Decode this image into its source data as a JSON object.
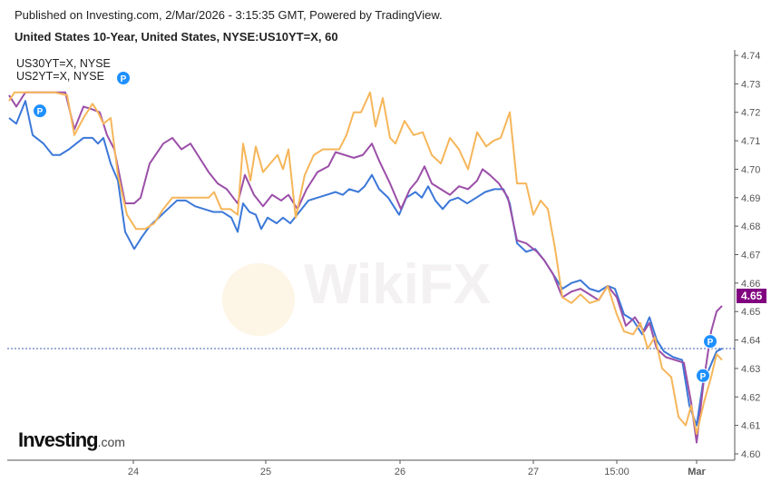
{
  "header": {
    "published": "Published on Investing.com, 2/Mar/2026 - 3:15:35 GMT, Powered by TradingView.",
    "title": "United States 10-Year, United States, NYSE:US10YT=X, 60"
  },
  "legend": [
    "US30YT=X, NYSE",
    "US2YT=X, NYSE"
  ],
  "logo": {
    "main": "Investing",
    "suffix": ".com"
  },
  "watermark": "WikiFX",
  "marker_label": "P",
  "chart_data": {
    "type": "line",
    "title": "United States 10-Year, United States, NYSE:US10YT=X, 60",
    "x_unit": "10-minute intervals (trading time)",
    "xlim": [
      8,
      810
    ],
    "ylim": [
      4.5975,
      4.7435
    ],
    "y_ticks": [
      4.6,
      4.61,
      4.62,
      4.63,
      4.64,
      4.65,
      4.66,
      4.67,
      4.68,
      4.69,
      4.7,
      4.71,
      4.72,
      4.73,
      4.74
    ],
    "x_ticks": [
      {
        "x": 147,
        "label": "24"
      },
      {
        "x": 293,
        "label": "25"
      },
      {
        "x": 441,
        "label": "26"
      },
      {
        "x": 588,
        "label": "27"
      },
      {
        "x": 680,
        "label": "15:00"
      },
      {
        "x": 768,
        "label": "Mar"
      }
    ],
    "last_price": {
      "value": 4.65,
      "label": "4.65",
      "color": "#800080"
    },
    "price_line": 4.637,
    "series": [
      {
        "name": "US10YT=X",
        "color": "#3c78d8",
        "points": [
          [
            10,
            4.718
          ],
          [
            18,
            4.716
          ],
          [
            28,
            4.724
          ],
          [
            36,
            4.712
          ],
          [
            48,
            4.709
          ],
          [
            58,
            4.705
          ],
          [
            66,
            4.705
          ],
          [
            76,
            4.707
          ],
          [
            84,
            4.709
          ],
          [
            92,
            4.711
          ],
          [
            102,
            4.711
          ],
          [
            108,
            4.709
          ],
          [
            114,
            4.711
          ],
          [
            122,
            4.702
          ],
          [
            130,
            4.696
          ],
          [
            138,
            4.678
          ],
          [
            148,
            4.672
          ],
          [
            156,
            4.676
          ],
          [
            165,
            4.68
          ],
          [
            175,
            4.683
          ],
          [
            185,
            4.686
          ],
          [
            195,
            4.689
          ],
          [
            205,
            4.689
          ],
          [
            215,
            4.687
          ],
          [
            225,
            4.686
          ],
          [
            235,
            4.685
          ],
          [
            245,
            4.685
          ],
          [
            255,
            4.683
          ],
          [
            262,
            4.678
          ],
          [
            268,
            4.688
          ],
          [
            275,
            4.685
          ],
          [
            282,
            4.684
          ],
          [
            288,
            4.679
          ],
          [
            295,
            4.683
          ],
          [
            305,
            4.681
          ],
          [
            312,
            4.683
          ],
          [
            320,
            4.681
          ],
          [
            330,
            4.685
          ],
          [
            340,
            4.689
          ],
          [
            350,
            4.69
          ],
          [
            360,
            4.691
          ],
          [
            370,
            4.692
          ],
          [
            378,
            4.691
          ],
          [
            385,
            4.693
          ],
          [
            395,
            4.692
          ],
          [
            402,
            4.694
          ],
          [
            410,
            4.698
          ],
          [
            418,
            4.693
          ],
          [
            428,
            4.69
          ],
          [
            440,
            4.684
          ],
          [
            448,
            4.69
          ],
          [
            458,
            4.692
          ],
          [
            465,
            4.69
          ],
          [
            472,
            4.694
          ],
          [
            480,
            4.689
          ],
          [
            488,
            4.686
          ],
          [
            496,
            4.689
          ],
          [
            505,
            4.69
          ],
          [
            515,
            4.688
          ],
          [
            525,
            4.69
          ],
          [
            535,
            4.692
          ],
          [
            545,
            4.693
          ],
          [
            555,
            4.693
          ],
          [
            562,
            4.688
          ],
          [
            570,
            4.674
          ],
          [
            580,
            4.671
          ],
          [
            590,
            4.672
          ],
          [
            600,
            4.668
          ],
          [
            610,
            4.663
          ],
          [
            620,
            4.658
          ],
          [
            630,
            4.66
          ],
          [
            640,
            4.661
          ],
          [
            650,
            4.658
          ],
          [
            660,
            4.657
          ],
          [
            670,
            4.659
          ],
          [
            678,
            4.658
          ],
          [
            688,
            4.649
          ],
          [
            698,
            4.647
          ],
          [
            708,
            4.642
          ],
          [
            716,
            4.648
          ],
          [
            724,
            4.64
          ],
          [
            732,
            4.636
          ],
          [
            742,
            4.634
          ],
          [
            752,
            4.633
          ],
          [
            760,
            4.617
          ],
          [
            768,
            4.61
          ],
          [
            775,
            4.625
          ],
          [
            782,
            4.63
          ],
          [
            790,
            4.636
          ],
          [
            796,
            4.637
          ]
        ]
      },
      {
        "name": "US30YT=X",
        "color": "#9b4fa8",
        "points": [
          [
            10,
            4.726
          ],
          [
            18,
            4.722
          ],
          [
            28,
            4.727
          ],
          [
            40,
            4.727
          ],
          [
            60,
            4.727
          ],
          [
            72,
            4.727
          ],
          [
            82,
            4.714
          ],
          [
            92,
            4.722
          ],
          [
            102,
            4.721
          ],
          [
            110,
            4.72
          ],
          [
            118,
            4.712
          ],
          [
            126,
            4.707
          ],
          [
            138,
            4.688
          ],
          [
            148,
            4.688
          ],
          [
            155,
            4.69
          ],
          [
            165,
            4.702
          ],
          [
            180,
            4.709
          ],
          [
            190,
            4.711
          ],
          [
            200,
            4.707
          ],
          [
            210,
            4.709
          ],
          [
            218,
            4.705
          ],
          [
            230,
            4.699
          ],
          [
            240,
            4.695
          ],
          [
            250,
            4.693
          ],
          [
            262,
            4.688
          ],
          [
            270,
            4.698
          ],
          [
            280,
            4.691
          ],
          [
            290,
            4.687
          ],
          [
            300,
            4.691
          ],
          [
            310,
            4.689
          ],
          [
            318,
            4.691
          ],
          [
            328,
            4.686
          ],
          [
            338,
            4.693
          ],
          [
            350,
            4.699
          ],
          [
            362,
            4.701
          ],
          [
            370,
            4.706
          ],
          [
            380,
            4.705
          ],
          [
            390,
            4.704
          ],
          [
            400,
            4.705
          ],
          [
            410,
            4.709
          ],
          [
            418,
            4.703
          ],
          [
            430,
            4.695
          ],
          [
            442,
            4.686
          ],
          [
            452,
            4.693
          ],
          [
            460,
            4.696
          ],
          [
            468,
            4.701
          ],
          [
            476,
            4.695
          ],
          [
            486,
            4.693
          ],
          [
            496,
            4.691
          ],
          [
            506,
            4.694
          ],
          [
            516,
            4.693
          ],
          [
            526,
            4.696
          ],
          [
            532,
            4.7
          ],
          [
            540,
            4.698
          ],
          [
            550,
            4.695
          ],
          [
            560,
            4.69
          ],
          [
            570,
            4.675
          ],
          [
            580,
            4.674
          ],
          [
            592,
            4.671
          ],
          [
            600,
            4.668
          ],
          [
            610,
            4.663
          ],
          [
            620,
            4.655
          ],
          [
            630,
            4.657
          ],
          [
            640,
            4.658
          ],
          [
            650,
            4.656
          ],
          [
            660,
            4.654
          ],
          [
            670,
            4.659
          ],
          [
            680,
            4.655
          ],
          [
            690,
            4.645
          ],
          [
            700,
            4.648
          ],
          [
            710,
            4.643
          ],
          [
            716,
            4.646
          ],
          [
            724,
            4.637
          ],
          [
            734,
            4.634
          ],
          [
            744,
            4.633
          ],
          [
            754,
            4.632
          ],
          [
            762,
            4.618
          ],
          [
            768,
            4.604
          ],
          [
            776,
            4.626
          ],
          [
            784,
            4.643
          ],
          [
            790,
            4.65
          ],
          [
            796,
            4.652
          ]
        ]
      },
      {
        "name": "US2YT=X",
        "color": "#f6b65a",
        "points": [
          [
            10,
            4.724
          ],
          [
            16,
            4.727
          ],
          [
            30,
            4.727
          ],
          [
            60,
            4.727
          ],
          [
            74,
            4.726
          ],
          [
            82,
            4.712
          ],
          [
            92,
            4.718
          ],
          [
            102,
            4.723
          ],
          [
            108,
            4.72
          ],
          [
            114,
            4.716
          ],
          [
            122,
            4.718
          ],
          [
            130,
            4.698
          ],
          [
            140,
            4.684
          ],
          [
            150,
            4.679
          ],
          [
            160,
            4.679
          ],
          [
            170,
            4.681
          ],
          [
            180,
            4.686
          ],
          [
            190,
            4.69
          ],
          [
            200,
            4.69
          ],
          [
            210,
            4.69
          ],
          [
            220,
            4.69
          ],
          [
            230,
            4.69
          ],
          [
            236,
            4.692
          ],
          [
            244,
            4.686
          ],
          [
            254,
            4.686
          ],
          [
            262,
            4.684
          ],
          [
            268,
            4.709
          ],
          [
            276,
            4.696
          ],
          [
            282,
            4.708
          ],
          [
            290,
            4.699
          ],
          [
            298,
            4.702
          ],
          [
            306,
            4.705
          ],
          [
            312,
            4.7
          ],
          [
            318,
            4.707
          ],
          [
            326,
            4.683
          ],
          [
            336,
            4.698
          ],
          [
            346,
            4.705
          ],
          [
            356,
            4.707
          ],
          [
            366,
            4.707
          ],
          [
            374,
            4.707
          ],
          [
            382,
            4.712
          ],
          [
            390,
            4.72
          ],
          [
            398,
            4.72
          ],
          [
            408,
            4.727
          ],
          [
            414,
            4.715
          ],
          [
            422,
            4.725
          ],
          [
            430,
            4.711
          ],
          [
            436,
            4.709
          ],
          [
            446,
            4.717
          ],
          [
            456,
            4.712
          ],
          [
            466,
            4.713
          ],
          [
            476,
            4.705
          ],
          [
            486,
            4.702
          ],
          [
            496,
            4.711
          ],
          [
            506,
            4.707
          ],
          [
            516,
            4.7
          ],
          [
            526,
            4.713
          ],
          [
            536,
            4.708
          ],
          [
            544,
            4.71
          ],
          [
            552,
            4.711
          ],
          [
            562,
            4.72
          ],
          [
            570,
            4.695
          ],
          [
            580,
            4.695
          ],
          [
            588,
            4.684
          ],
          [
            596,
            4.689
          ],
          [
            604,
            4.686
          ],
          [
            612,
            4.672
          ],
          [
            620,
            4.655
          ],
          [
            630,
            4.653
          ],
          [
            640,
            4.656
          ],
          [
            650,
            4.653
          ],
          [
            660,
            4.654
          ],
          [
            670,
            4.659
          ],
          [
            680,
            4.649
          ],
          [
            688,
            4.643
          ],
          [
            698,
            4.642
          ],
          [
            706,
            4.646
          ],
          [
            714,
            4.637
          ],
          [
            722,
            4.641
          ],
          [
            730,
            4.63
          ],
          [
            740,
            4.627
          ],
          [
            748,
            4.613
          ],
          [
            756,
            4.61
          ],
          [
            762,
            4.617
          ],
          [
            768,
            4.607
          ],
          [
            776,
            4.618
          ],
          [
            784,
            4.627
          ],
          [
            790,
            4.635
          ],
          [
            796,
            4.633
          ]
        ]
      }
    ],
    "markers": [
      {
        "x": 44,
        "value": 4.7205
      },
      {
        "x": 783,
        "value": 4.6395
      },
      {
        "x": 775,
        "value": 4.6275
      }
    ]
  }
}
